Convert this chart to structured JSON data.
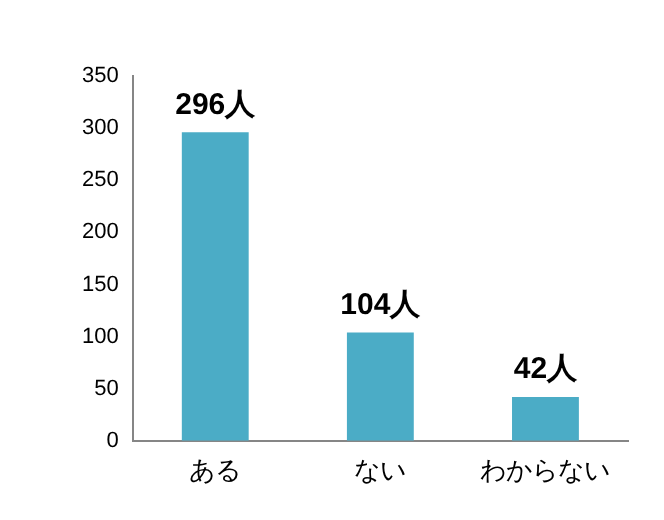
{
  "chart_data": {
    "type": "bar",
    "categories": [
      "ある",
      "ない",
      "わからない"
    ],
    "values": [
      296,
      104,
      42
    ],
    "color": "#4bacc6",
    "value_labels": [
      "296人",
      "104人",
      "42人"
    ],
    "ylim": [
      0,
      350
    ],
    "yticks": [
      0,
      50,
      100,
      150,
      200,
      250,
      300,
      350
    ],
    "grid": false,
    "legend": false
  }
}
